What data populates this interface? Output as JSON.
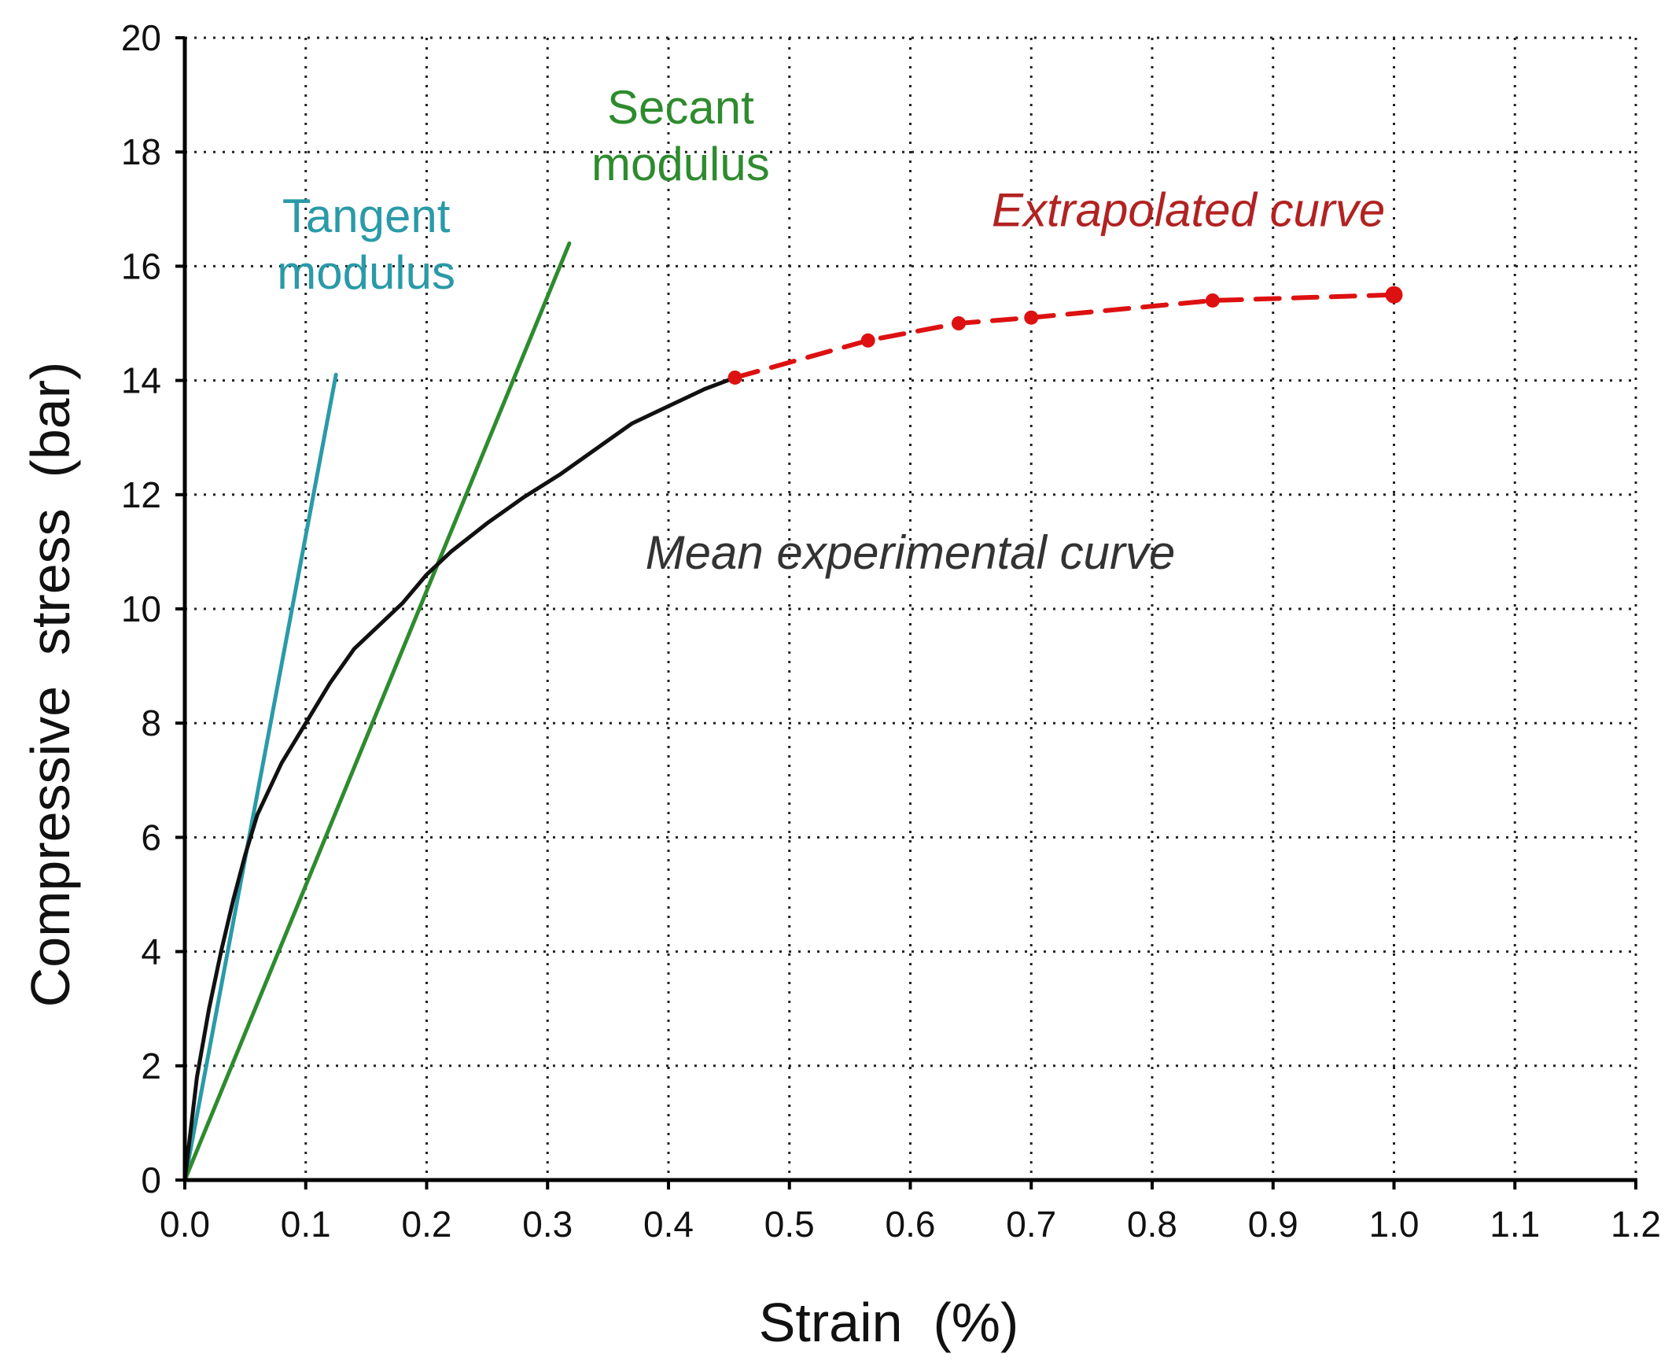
{
  "chart_data": {
    "type": "line",
    "title": "",
    "xlabel": "Strain  (%)",
    "ylabel": "Compressive  stress  (bar)",
    "xlim": [
      0,
      1.2
    ],
    "ylim": [
      0,
      20
    ],
    "grid": true,
    "x_ticks": [
      "0.0",
      "0.1",
      "0.2",
      "0.3",
      "0.4",
      "0.5",
      "0.6",
      "0.7",
      "0.8",
      "0.9",
      "1.0",
      "1.1",
      "1.2"
    ],
    "x_tick_values": [
      0,
      0.1,
      0.2,
      0.3,
      0.4,
      0.5,
      0.6,
      0.7,
      0.8,
      0.9,
      1.0,
      1.1,
      1.2
    ],
    "y_ticks": [
      "0",
      "2",
      "4",
      "6",
      "8",
      "10",
      "12",
      "14",
      "16",
      "18",
      "20"
    ],
    "y_tick_values": [
      0,
      2,
      4,
      6,
      8,
      10,
      12,
      14,
      16,
      18,
      20
    ],
    "colors": {
      "experimental": "#111111",
      "extrapolated": "#dd1111",
      "tangent": "#2a9aa8",
      "secant": "#2e8b2e",
      "annot_extrapolated": "#b22222",
      "annot_experimental": "#333333"
    },
    "series": [
      {
        "name": "Mean experimental curve",
        "style": "solid",
        "x": [
          0,
          0.01,
          0.02,
          0.03,
          0.04,
          0.05,
          0.06,
          0.08,
          0.1,
          0.12,
          0.14,
          0.16,
          0.18,
          0.2,
          0.22,
          0.25,
          0.28,
          0.31,
          0.34,
          0.37,
          0.4,
          0.43,
          0.455
        ],
        "y": [
          0,
          1.8,
          3.0,
          4.0,
          4.9,
          5.7,
          6.4,
          7.3,
          8.0,
          8.7,
          9.3,
          9.7,
          10.1,
          10.6,
          11.0,
          11.5,
          11.95,
          12.35,
          12.8,
          13.25,
          13.55,
          13.85,
          14.05
        ]
      },
      {
        "name": "Extrapolated curve",
        "style": "dashed",
        "markers": true,
        "x": [
          0.455,
          0.565,
          0.64,
          0.7,
          0.85,
          1.0
        ],
        "y": [
          14.05,
          14.7,
          15.0,
          15.1,
          15.4,
          15.5
        ]
      },
      {
        "name": "Tangent modulus",
        "style": "solid",
        "x": [
          0,
          0.125
        ],
        "y": [
          0,
          14.1
        ]
      },
      {
        "name": "Secant modulus",
        "style": "solid",
        "x": [
          0,
          0.318
        ],
        "y": [
          0,
          16.4
        ]
      }
    ],
    "annotations": [
      {
        "id": "tangent",
        "lines": [
          "Tangent",
          "modulus"
        ],
        "x": 0.15,
        "y": 16.6,
        "italic": false
      },
      {
        "id": "secant",
        "lines": [
          "Secant",
          "modulus"
        ],
        "x": 0.41,
        "y": 18.5,
        "italic": false
      },
      {
        "id": "extrapolated",
        "lines": [
          "Extrapolated curve"
        ],
        "x": 0.83,
        "y": 16.7,
        "italic": true
      },
      {
        "id": "experimental",
        "lines": [
          "Mean experimental curve"
        ],
        "x": 0.6,
        "y": 10.7,
        "italic": true
      }
    ]
  }
}
